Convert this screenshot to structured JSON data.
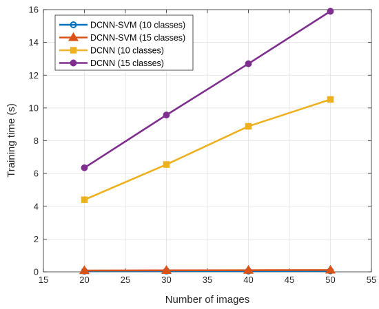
{
  "chart_data": {
    "type": "line",
    "xlabel": "Number of images",
    "ylabel": "Training time (s)",
    "xlim": [
      15,
      55
    ],
    "ylim": [
      0,
      16
    ],
    "xticks": [
      15,
      20,
      25,
      30,
      35,
      40,
      45,
      50,
      55
    ],
    "yticks": [
      0,
      2,
      4,
      6,
      8,
      10,
      12,
      14,
      16
    ],
    "x": [
      20,
      30,
      40,
      50
    ],
    "grid": true,
    "legend_position": "top-left",
    "series": [
      {
        "name": "DCNN-SVM (10 classes)",
        "values": [
          0.04,
          0.05,
          0.05,
          0.06
        ],
        "color": "#0072BD",
        "marker": "circle"
      },
      {
        "name": "DCNN-SVM (15 classes)",
        "values": [
          0.08,
          0.09,
          0.1,
          0.11
        ],
        "color": "#D95319",
        "marker": "triangle"
      },
      {
        "name": "DCNN (10 classes)",
        "values": [
          4.4,
          6.55,
          8.88,
          10.52
        ],
        "color": "#EDB120",
        "marker": "square"
      },
      {
        "name": "DCNN (15 classes)",
        "values": [
          6.35,
          9.57,
          12.7,
          15.9
        ],
        "color": "#7E2F8E",
        "marker": "circle-filled"
      }
    ]
  }
}
